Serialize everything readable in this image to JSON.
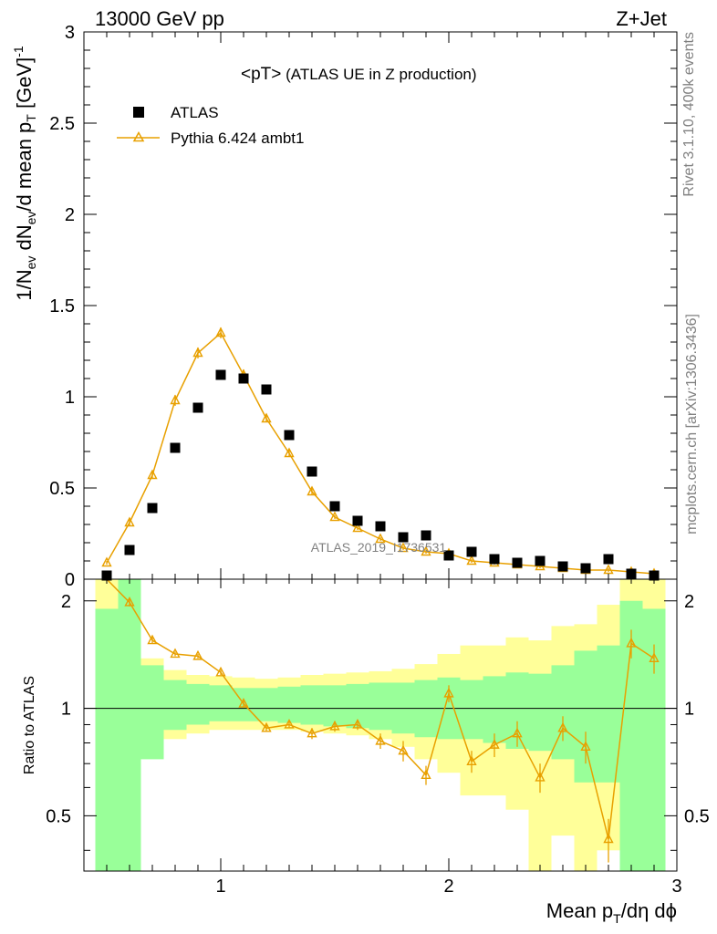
{
  "header": {
    "left_title": "13000 GeV pp",
    "right_title": "Z+Jet"
  },
  "plot_title": {
    "main": "<pT>",
    "suffix": " (ATLAS UE in Z production)"
  },
  "side_labels": {
    "rivet": "Rivet 3.1.10,  400k events",
    "mcplots": "mcplots.cern.ch [arXiv:1306.3436]"
  },
  "watermark": "ATLAS_2019_I1736531",
  "legend": {
    "data_label": "ATLAS",
    "mc_label": "Pythia 6.424 ambt1"
  },
  "axes": {
    "y_main_label": "1/N_ev dN_ev/d mean p_T [GeV]^-1",
    "y_ratio_label": "Ratio to ATLAS",
    "x_label": "Mean p_T/dη dϕ",
    "x_ticks": [
      "1",
      "2",
      "3"
    ],
    "y_main_ticks": [
      "0",
      "0.5",
      "1",
      "1.5",
      "2",
      "2.5",
      "3"
    ],
    "y_ratio_ticks": [
      "0.5",
      "1",
      "2"
    ]
  },
  "colors": {
    "mc": "#e8a000",
    "band_inner": "#99ff99",
    "band_outer": "#ffff99"
  },
  "chart_data": {
    "type": "scatter",
    "x_range": [
      0.4,
      3.0
    ],
    "main_ylim": [
      0,
      3.0
    ],
    "ratio_ylim": [
      0.35,
      2.3
    ],
    "ratio_log": true,
    "x": [
      0.5,
      0.6,
      0.7,
      0.8,
      0.9,
      1.0,
      1.1,
      1.2,
      1.3,
      1.4,
      1.5,
      1.6,
      1.7,
      1.8,
      1.9,
      2.0,
      2.1,
      2.2,
      2.3,
      2.4,
      2.5,
      2.6,
      2.7,
      2.8,
      2.9
    ],
    "series": [
      {
        "name": "ATLAS",
        "values": [
          0.02,
          0.16,
          0.39,
          0.72,
          0.94,
          1.12,
          1.1,
          1.04,
          0.79,
          0.59,
          0.4,
          0.32,
          0.29,
          0.23,
          0.24,
          0.13,
          0.15,
          0.11,
          0.09,
          0.1,
          0.07,
          0.06,
          0.11,
          0.03,
          0.02
        ]
      },
      {
        "name": "Pythia 6.424 ambt1",
        "values": [
          0.09,
          0.31,
          0.57,
          0.98,
          1.24,
          1.35,
          1.12,
          0.88,
          0.69,
          0.48,
          0.34,
          0.28,
          0.22,
          0.17,
          0.15,
          0.14,
          0.1,
          0.09,
          0.08,
          0.07,
          0.06,
          0.05,
          0.05,
          0.04,
          0.03
        ],
        "errors": [
          0.01,
          0.02,
          0.02,
          0.03,
          0.03,
          0.03,
          0.03,
          0.02,
          0.02,
          0.02,
          0.01,
          0.01,
          0.01,
          0.01,
          0.01,
          0.01,
          0.01,
          0.01,
          0.01,
          0.01,
          0.01,
          0.01,
          0.01,
          0.01,
          0.01
        ]
      }
    ],
    "ratio": {
      "bin_edges": [
        0.45,
        0.55,
        0.65,
        0.75,
        0.85,
        0.95,
        1.05,
        1.15,
        1.25,
        1.35,
        1.45,
        1.55,
        1.65,
        1.75,
        1.85,
        1.95,
        2.05,
        2.15,
        2.25,
        2.35,
        2.45,
        2.55,
        2.65,
        2.75,
        2.85,
        2.95
      ],
      "mc_ratio": [
        5.0,
        1.98,
        1.55,
        1.42,
        1.4,
        1.26,
        1.03,
        0.88,
        0.9,
        0.85,
        0.89,
        0.9,
        0.81,
        0.76,
        0.65,
        1.1,
        0.71,
        0.79,
        0.85,
        0.64,
        0.88,
        0.78,
        0.43,
        1.52,
        1.38
      ],
      "mc_ratio_err": [
        0.0,
        0.05,
        0.03,
        0.02,
        0.02,
        0.02,
        0.02,
        0.02,
        0.02,
        0.03,
        0.03,
        0.03,
        0.04,
        0.05,
        0.04,
        0.06,
        0.05,
        0.06,
        0.07,
        0.06,
        0.07,
        0.08,
        0.06,
        0.14,
        0.13
      ],
      "band_inner": [
        [
          0.1,
          1.9
        ],
        [
          0.1,
          2.5
        ],
        [
          0.72,
          1.32
        ],
        [
          0.87,
          1.2
        ],
        [
          0.9,
          1.17
        ],
        [
          0.92,
          1.16
        ],
        [
          0.92,
          1.14
        ],
        [
          0.92,
          1.14
        ],
        [
          0.91,
          1.15
        ],
        [
          0.9,
          1.16
        ],
        [
          0.89,
          1.16
        ],
        [
          0.88,
          1.17
        ],
        [
          0.87,
          1.18
        ],
        [
          0.85,
          1.18
        ],
        [
          0.83,
          1.2
        ],
        [
          0.82,
          1.22
        ],
        [
          0.82,
          1.2
        ],
        [
          0.8,
          1.23
        ],
        [
          0.77,
          1.26
        ],
        [
          0.76,
          1.25
        ],
        [
          0.72,
          1.32
        ],
        [
          0.62,
          1.45
        ],
        [
          0.62,
          1.5
        ],
        [
          0.1,
          2.0
        ],
        [
          0.1,
          1.9
        ]
      ],
      "band_outer": [
        [
          0.1,
          2.6
        ],
        [
          0.62,
          1.5
        ],
        [
          0.8,
          1.38
        ],
        [
          0.82,
          1.28
        ],
        [
          0.85,
          1.24
        ],
        [
          0.87,
          1.23
        ],
        [
          0.87,
          1.22
        ],
        [
          0.87,
          1.21
        ],
        [
          0.87,
          1.22
        ],
        [
          0.86,
          1.24
        ],
        [
          0.85,
          1.25
        ],
        [
          0.84,
          1.26
        ],
        [
          0.82,
          1.27
        ],
        [
          0.78,
          1.29
        ],
        [
          0.72,
          1.33
        ],
        [
          0.66,
          1.42
        ],
        [
          0.57,
          1.5
        ],
        [
          0.57,
          1.5
        ],
        [
          0.52,
          1.58
        ],
        [
          0.1,
          1.55
        ],
        [
          0.44,
          1.7
        ],
        [
          0.1,
          1.72
        ],
        [
          0.4,
          1.95
        ],
        [
          0.1,
          2.6
        ],
        [
          0.1,
          2.6
        ]
      ]
    }
  }
}
